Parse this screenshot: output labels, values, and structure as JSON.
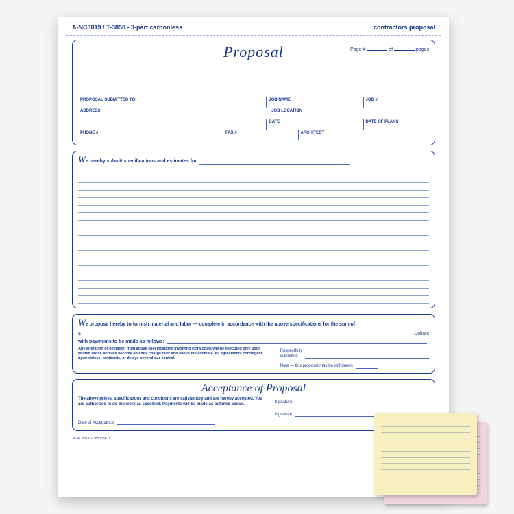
{
  "header": {
    "code": "A-NC3819 / T-3850 - 3-part carbonless",
    "product": "contractors proposal"
  },
  "proposal": {
    "title": "Proposal",
    "page_label": "Page #",
    "of_label": "of",
    "pages_label": "pages",
    "fields": {
      "submitted_to": "PROPOSAL SUBMITTED TO:",
      "job_name": "JOB NAME",
      "job_no": "JOB #",
      "address": "ADDRESS",
      "job_location": "JOB LOCATION",
      "date": "DATE",
      "date_of_plans": "DATE OF PLANS",
      "phone": "PHONE #",
      "fax": "FAX #",
      "architect": "ARCHITECT"
    }
  },
  "spec": {
    "dropcap": "W",
    "lead": "e hereby submit specifications and estimates for:",
    "lines": 18
  },
  "propose": {
    "dropcap": "W",
    "lead": "e propose hereby to furnish material and labor — complete in accordance with the above specifications for the sum of:",
    "dollar": "$",
    "dollars": "Dollars",
    "payments": "with payments to be made as follows:",
    "fine_print": "Any alteration or deviation from above specifications involving extra costs will be executed only upon written order, and will become an extra charge over and above the estimate. All agreements contingent upon strikes, accidents, or delays beyond our control.",
    "respectfully": "Respectfully\nsubmitted",
    "note": "Note — this proposal may be withdrawn"
  },
  "accept": {
    "title": "Acceptance of Proposal",
    "text": "The above prices, specifications and conditions are satisfactory and are hereby accepted. You are authorized to do the work as specified. Payments will be made as outlined above.",
    "date_label": "Date of Acceptance",
    "sig_label": "Signature"
  },
  "footer_code": "A-NC3819   T-3850  09-11",
  "colors": {
    "ink": "#1a3a8a",
    "rule": "#8fa3d0",
    "pink": "#f2d4dc",
    "yellow": "#f6efc0"
  }
}
